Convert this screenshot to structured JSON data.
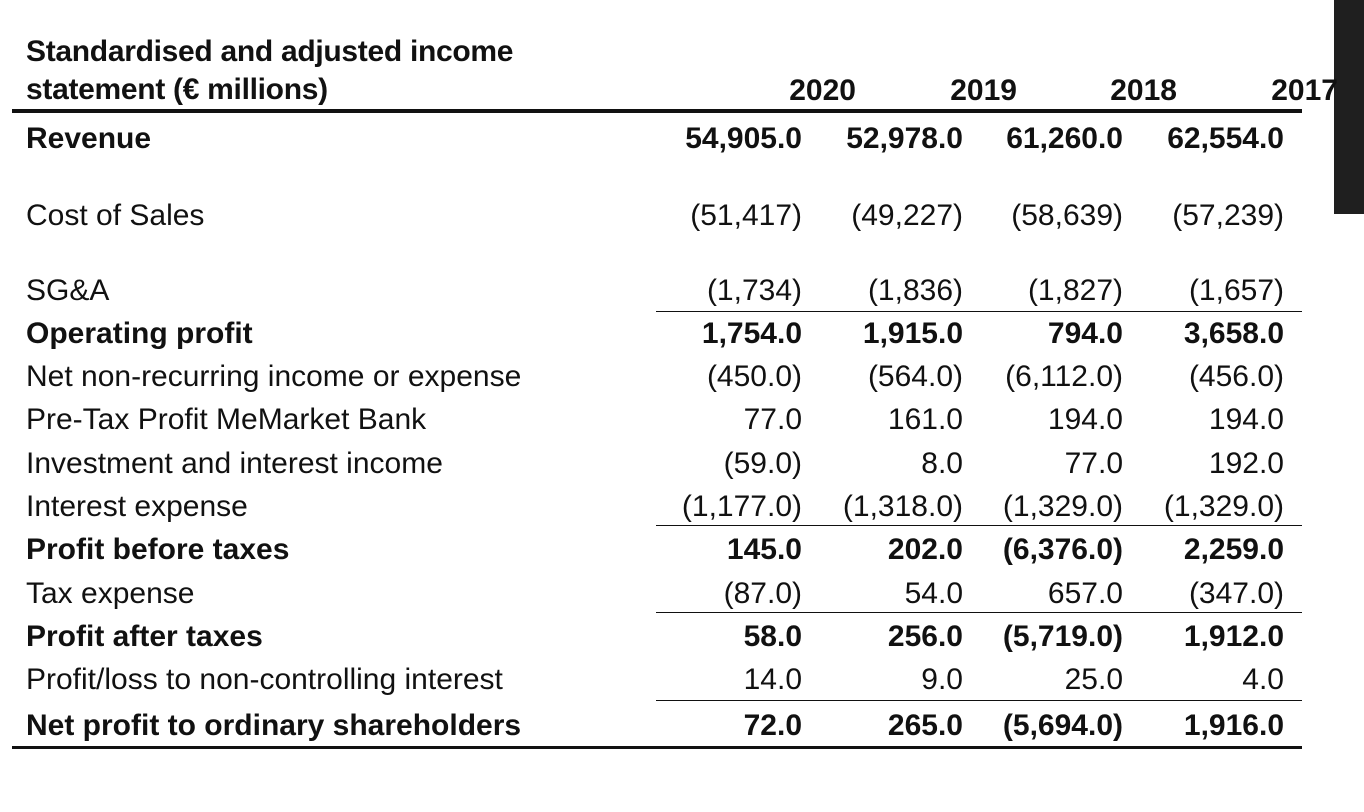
{
  "title": "Standardised and adjusted income statement (€ millions)",
  "years": [
    "2020",
    "2019",
    "2018",
    "2017"
  ],
  "rows": [
    {
      "label": "Revenue",
      "bold": true,
      "values": [
        "54,905.0",
        "52,978.0",
        "61,260.0",
        "62,554.0"
      ]
    },
    {
      "label": "Cost of Sales",
      "bold": false,
      "values": [
        "(51,417)",
        "(49,227)",
        "(58,639)",
        "(57,239)"
      ]
    },
    {
      "label": "SG&A",
      "bold": false,
      "values": [
        "(1,734)",
        "(1,836)",
        "(1,827)",
        "(1,657)"
      ]
    },
    {
      "label": "Operating profit",
      "bold": true,
      "values": [
        "1,754.0",
        "1,915.0",
        "794.0",
        "3,658.0"
      ]
    },
    {
      "label": "Net non-recurring income or expense",
      "bold": false,
      "values": [
        "(450.0)",
        "(564.0)",
        "(6,112.0)",
        "(456.0)"
      ]
    },
    {
      "label": "Pre-Tax Profit MeMarket Bank",
      "bold": false,
      "values": [
        "77.0",
        "161.0",
        "194.0",
        "194.0"
      ]
    },
    {
      "label": "Investment and interest income",
      "bold": false,
      "values": [
        "(59.0)",
        "8.0",
        "77.0",
        "192.0"
      ]
    },
    {
      "label": "Interest expense",
      "bold": false,
      "values": [
        "(1,177.0)",
        "(1,318.0)",
        "(1,329.0)",
        "(1,329.0)"
      ]
    },
    {
      "label": "Profit before taxes",
      "bold": true,
      "values": [
        "145.0",
        "202.0",
        "(6,376.0)",
        "2,259.0"
      ]
    },
    {
      "label": "Tax expense",
      "bold": false,
      "values": [
        "(87.0)",
        "54.0",
        "657.0",
        "(347.0)"
      ]
    },
    {
      "label": "Profit after taxes",
      "bold": true,
      "values": [
        "58.0",
        "256.0",
        "(5,719.0)",
        "1,912.0"
      ]
    },
    {
      "label": "Profit/loss to non-controlling interest",
      "bold": false,
      "values": [
        "14.0",
        "9.0",
        "25.0",
        "4.0"
      ]
    },
    {
      "label": "Net profit to ordinary shareholders",
      "bold": true,
      "values": [
        "72.0",
        "265.0",
        "(5,694.0)",
        "1,916.0"
      ]
    }
  ]
}
